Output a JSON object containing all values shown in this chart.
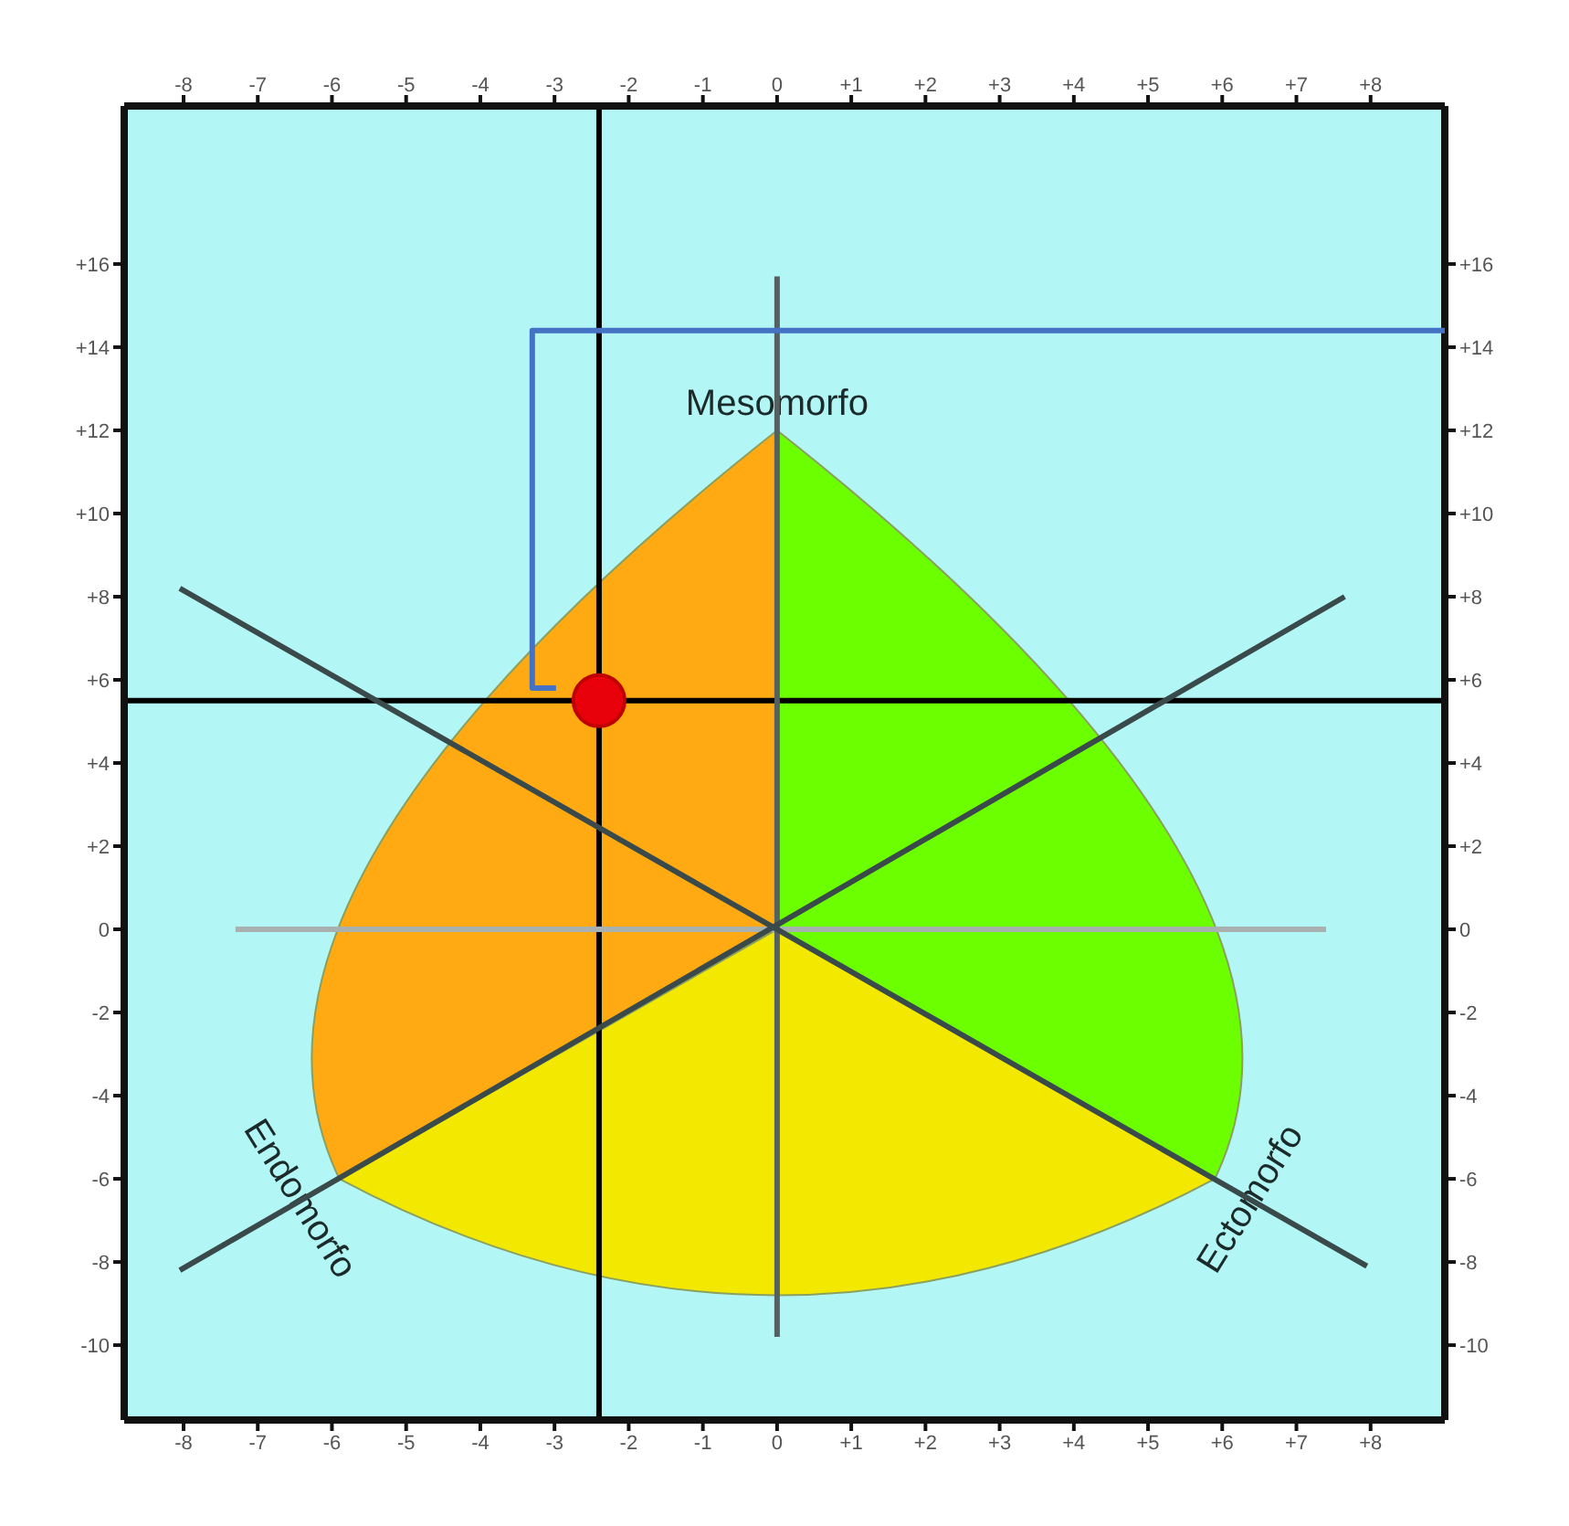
{
  "chart_data": {
    "type": "scatter",
    "annotations": [
      "Mesomorfo",
      "Endomorfo",
      "Ectomorfo"
    ],
    "series": [
      {
        "type": "line",
        "marker": "none",
        "color": "#a8b0b0",
        "x": [
          -7.3,
          7.4
        ],
        "values": [
          0,
          0
        ]
      },
      {
        "type": "line",
        "marker": "none",
        "color": "#556060",
        "x": [
          0,
          0
        ],
        "values": [
          15.7,
          -9.8
        ]
      },
      {
        "type": "line",
        "marker": "none",
        "color": "#3a4a4a",
        "x": [
          -8.05,
          7.95
        ],
        "values": [
          8.2,
          -8.1
        ]
      },
      {
        "type": "line",
        "marker": "none",
        "color": "#3a4a4a",
        "x": [
          -8.05,
          7.65
        ],
        "values": [
          -8.2,
          8
        ]
      },
      {
        "type": "line",
        "marker": "none",
        "color": "#4472c4",
        "x": [
          9,
          -3.3,
          -3.3,
          -2.98
        ],
        "values": [
          14.4,
          14.4,
          5.8,
          5.8
        ]
      },
      {
        "color": "#e8000b",
        "x": [
          -2.4
        ],
        "values": [
          5.5
        ]
      }
    ],
    "marker": "circle",
    "xlim": [
      -8.8,
      9
    ],
    "xticks": [
      -8,
      -7,
      -6,
      -5,
      -4,
      -3,
      -2,
      -1,
      0,
      {
        "value": 1,
        "label": "+1"
      },
      {
        "value": 2,
        "label": "+2"
      },
      {
        "value": 3,
        "label": "+3"
      },
      {
        "value": 4,
        "label": "+4"
      },
      {
        "value": 5,
        "label": "+5"
      },
      {
        "value": 6,
        "label": "+6"
      },
      {
        "value": 7,
        "label": "+7"
      },
      {
        "value": 8,
        "label": "+8"
      }
    ],
    "x2lim": [
      -8.8,
      9
    ],
    "x2ticks": [
      -8,
      -7,
      -6,
      -5,
      -4,
      -3,
      -2,
      -1,
      0,
      {
        "value": 1,
        "label": "+1"
      },
      {
        "value": 2,
        "label": "+2"
      },
      {
        "value": 3,
        "label": "+3"
      },
      {
        "value": 4,
        "label": "+4"
      },
      {
        "value": 5,
        "label": "+5"
      },
      {
        "value": 6,
        "label": "+6"
      },
      {
        "value": 7,
        "label": "+7"
      },
      {
        "value": 8,
        "label": "+8"
      }
    ],
    "ylim": [
      -11.8,
      19.8
    ],
    "yticks": [
      -10,
      -8,
      -6,
      -4,
      -2,
      0,
      {
        "value": 2,
        "label": "+2"
      },
      {
        "value": 4,
        "label": "+4"
      },
      {
        "value": 6,
        "label": "+6"
      },
      {
        "value": 8,
        "label": "+8"
      },
      {
        "value": 10,
        "label": "+10"
      },
      {
        "value": 12,
        "label": "+12"
      },
      {
        "value": 14,
        "label": "+14"
      },
      {
        "value": 16,
        "label": "+16"
      }
    ],
    "y2lim": [
      -11.8,
      19.8
    ],
    "y2ticks": [
      -10,
      -8,
      -6,
      -4,
      -2,
      0,
      {
        "value": 2,
        "label": "+2"
      },
      {
        "value": 4,
        "label": "+4"
      },
      {
        "value": 6,
        "label": "+6"
      },
      {
        "value": 8,
        "label": "+8"
      },
      {
        "value": 10,
        "label": "+10"
      },
      {
        "value": 12,
        "label": "+12"
      },
      {
        "value": 14,
        "label": "+14"
      },
      {
        "value": 16,
        "label": "+16"
      }
    ],
    "ref_lines": [
      {
        "axis": "x",
        "value": -2.4,
        "color": "#000000"
      },
      {
        "axis": "y",
        "value": 5.5,
        "color": "#000000"
      }
    ]
  }
}
